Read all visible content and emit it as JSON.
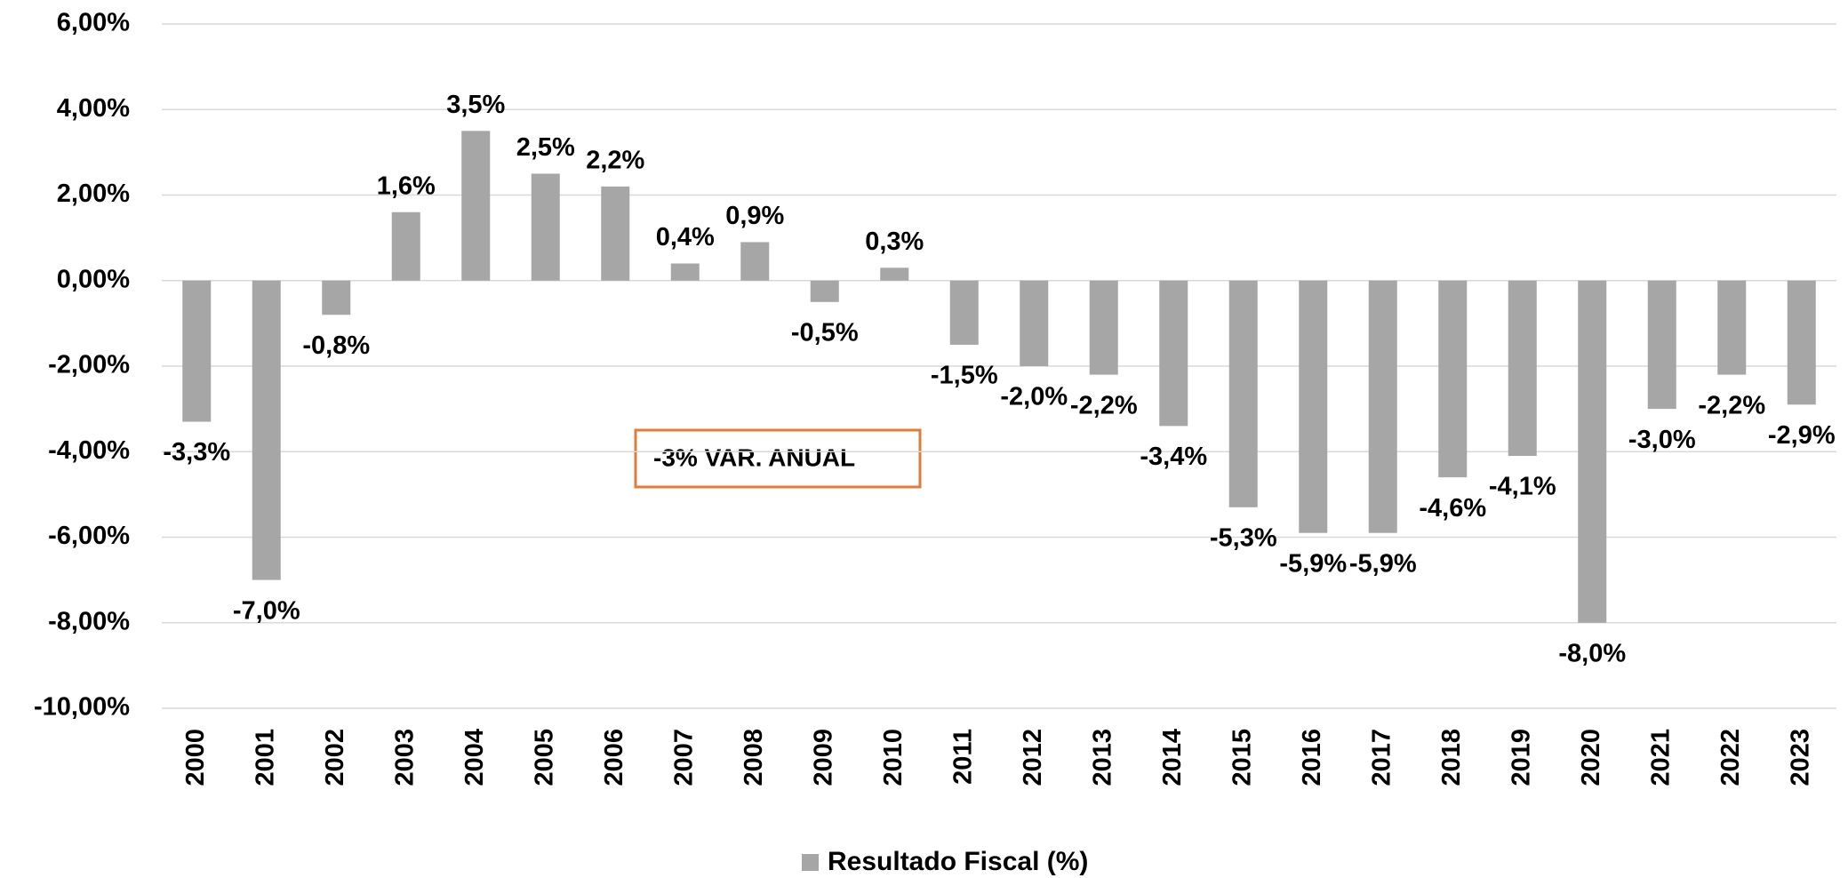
{
  "chart_data": {
    "type": "bar",
    "categories": [
      "2000",
      "2001",
      "2002",
      "2003",
      "2004",
      "2005",
      "2006",
      "2007",
      "2008",
      "2009",
      "2010",
      "2011",
      "2012",
      "2013",
      "2014",
      "2015",
      "2016",
      "2017",
      "2018",
      "2019",
      "2020",
      "2021",
      "2022",
      "2023"
    ],
    "series": [
      {
        "name": "Resultado Fiscal (%)",
        "color": "#a6a6a6",
        "values": [
          -3.3,
          -7.0,
          -0.8,
          1.6,
          3.5,
          2.5,
          2.2,
          0.4,
          0.9,
          -0.5,
          0.3,
          -1.5,
          -2.0,
          -2.2,
          -3.4,
          -5.3,
          -5.9,
          -5.9,
          -4.6,
          -4.1,
          -8.0,
          -3.0,
          -2.2,
          -2.9
        ],
        "value_labels": [
          "-3,3%",
          "-7,0%",
          "-0,8%",
          "1,6%",
          "3,5%",
          "2,5%",
          "2,2%",
          "0,4%",
          "0,9%",
          "-0,5%",
          "0,3%",
          "-1,5%",
          "-2,0%",
          "-2,2%",
          "-3,4%",
          "-5,3%",
          "-5,9%",
          "-5,9%",
          "-4,6%",
          "-4,1%",
          "-8,0%",
          "-3,0%",
          "-2,2%",
          "-2,9%"
        ]
      }
    ],
    "ylim": [
      -10,
      6
    ],
    "yticks": [
      {
        "value": -10,
        "label": "-10,00%"
      },
      {
        "value": -8,
        "label": "-8,00%"
      },
      {
        "value": -6,
        "label": "-6,00%"
      },
      {
        "value": -4,
        "label": "-4,00%"
      },
      {
        "value": -2,
        "label": "-2,00%"
      },
      {
        "value": 0,
        "label": "0,00%"
      },
      {
        "value": 2,
        "label": "2,00%"
      },
      {
        "value": 4,
        "label": "4,00%"
      },
      {
        "value": 6,
        "label": "6,00%"
      }
    ],
    "grid": true,
    "annotation": "-3% VAR. ANUAL",
    "legend": "bottom"
  }
}
